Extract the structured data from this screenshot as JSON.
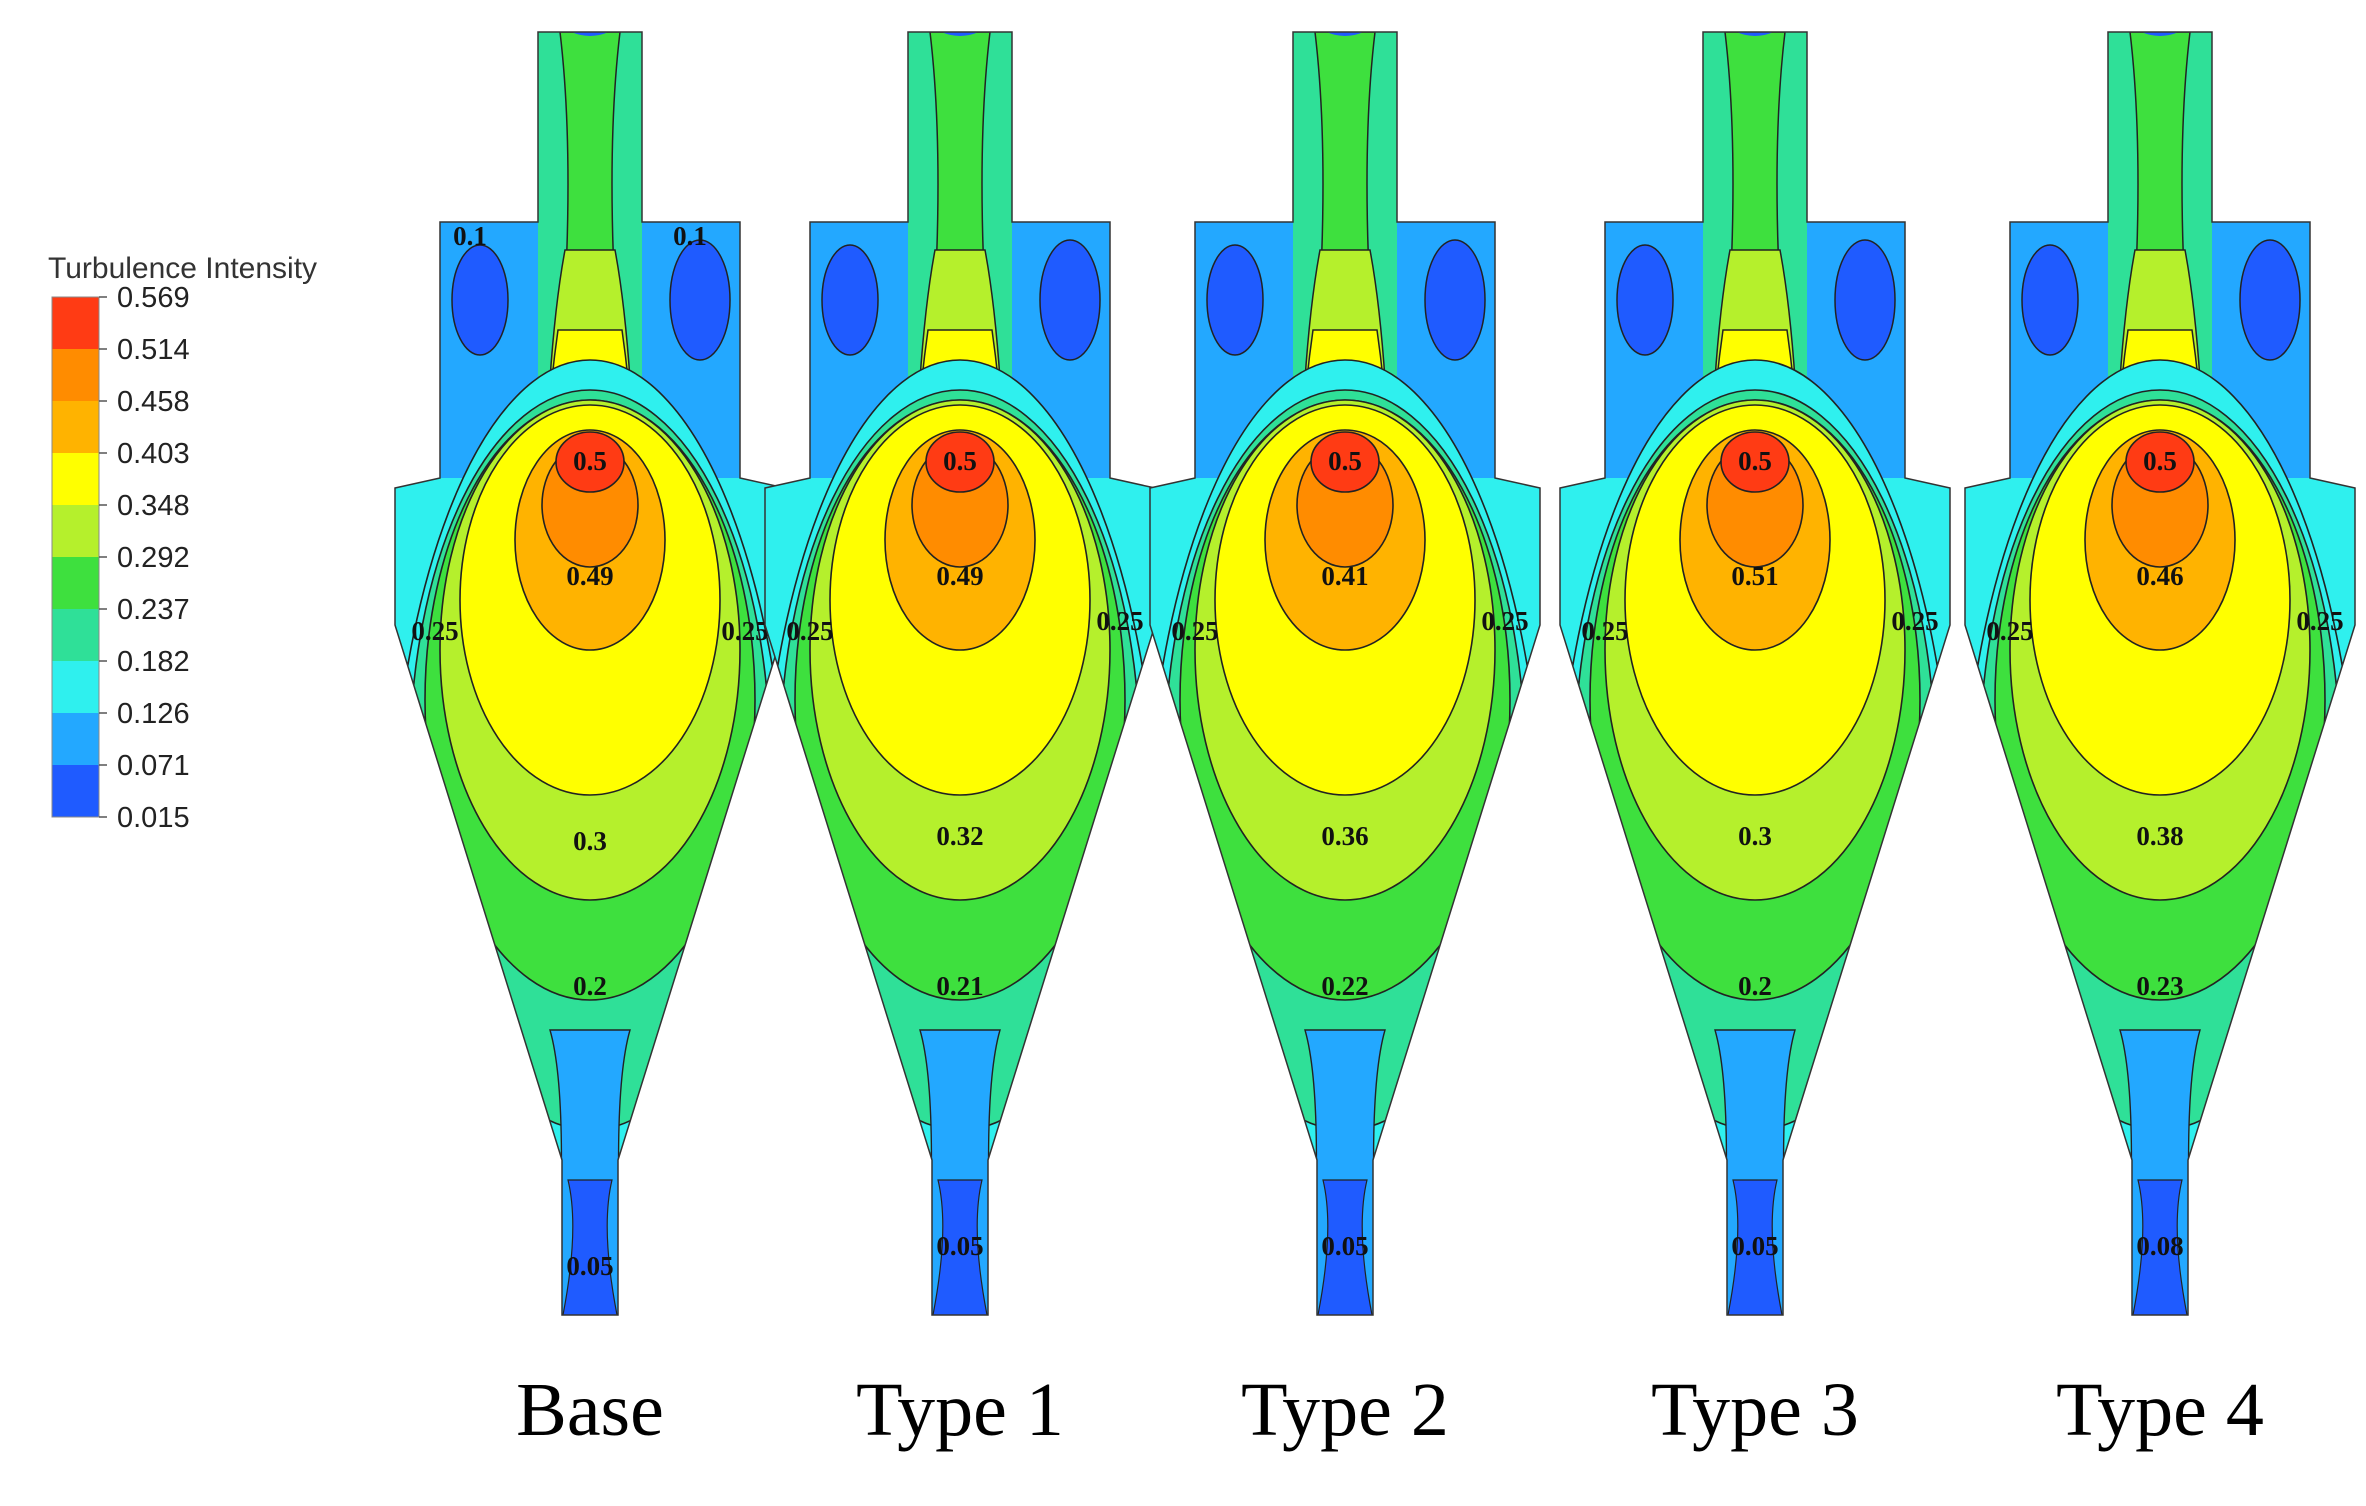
{
  "legend": {
    "title": "Turbulence Intensity",
    "values": [
      "0.569",
      "0.514",
      "0.458",
      "0.403",
      "0.348",
      "0.292",
      "0.237",
      "0.182",
      "0.126",
      "0.071",
      "0.015"
    ],
    "colors": [
      "#ff3b14",
      "#ff8c00",
      "#ffb300",
      "#ffff00",
      "#b5f02c",
      "#3ee03e",
      "#2fe098",
      "#2ff0ee",
      "#23a8ff",
      "#1f5bff",
      "#0a1ee6"
    ]
  },
  "panels": [
    {
      "caption": "Base",
      "variant": "base",
      "contour_labels": [
        "0.1",
        "0.1",
        "0.5",
        "0.49",
        "0.25",
        "0.25",
        "0.3",
        "0.2",
        "0.05"
      ]
    },
    {
      "caption": "Type 1",
      "variant": "type1",
      "contour_labels": [
        "0.5",
        "0.49",
        "0.25",
        "0.25",
        "0.32",
        "0.21",
        "0.05"
      ]
    },
    {
      "caption": "Type 2",
      "variant": "type2",
      "contour_labels": [
        "0.5",
        "0.41",
        "0.25",
        "0.25",
        "0.36",
        "0.22",
        "0.05"
      ]
    },
    {
      "caption": "Type 3",
      "variant": "type3",
      "contour_labels": [
        "0.5",
        "0.51",
        "0.25",
        "0.25",
        "0.3",
        "0.2",
        "0.05"
      ]
    },
    {
      "caption": "Type 4",
      "variant": "type4",
      "contour_labels": [
        "0.5",
        "0.46",
        "0.25",
        "0.25",
        "0.38",
        "0.23",
        "0.08"
      ]
    }
  ]
}
